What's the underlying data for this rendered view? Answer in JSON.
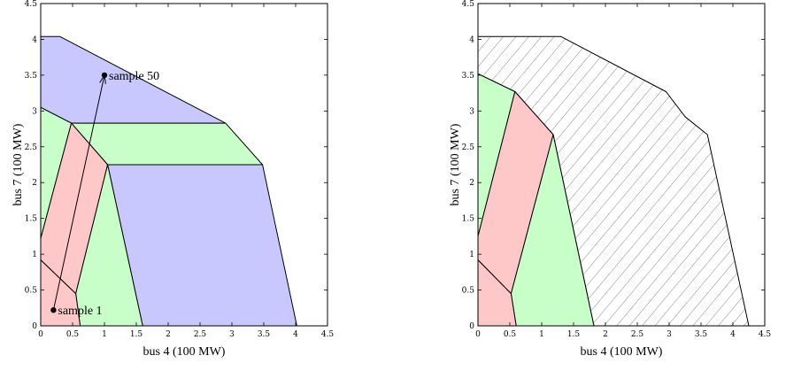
{
  "chart_data": [
    {
      "type": "area",
      "xlabel": "bus 4 (100 MW)",
      "ylabel": "bus 7 (100 MW)",
      "xlim": [
        0,
        4.5
      ],
      "ylim": [
        0,
        4.5
      ],
      "xticks": [
        "0",
        "0.5",
        "1",
        "1.5",
        "2",
        "2.5",
        "3",
        "3.5",
        "4",
        "4.5"
      ],
      "yticks": [
        "0",
        "0.5",
        "1",
        "1.5",
        "2",
        "2.5",
        "3",
        "3.5",
        "4",
        "4.5"
      ],
      "grid": false,
      "colors": {
        "blue": "#c8c8ff",
        "green": "#c8ffc8",
        "red": "#ffc8c8"
      },
      "regions": [
        {
          "color": "blue",
          "points": [
            [
              0,
              4.04
            ],
            [
              0.3,
              4.04
            ],
            [
              2.9,
              2.83
            ],
            [
              0.48,
              2.83
            ],
            [
              0,
              3.05
            ]
          ]
        },
        {
          "color": "green",
          "points": [
            [
              0.48,
              2.83
            ],
            [
              2.9,
              2.83
            ],
            [
              3.48,
              2.25
            ],
            [
              1.05,
              2.25
            ]
          ]
        },
        {
          "color": "blue",
          "points": [
            [
              1.05,
              2.25
            ],
            [
              3.48,
              2.25
            ],
            [
              4.02,
              0
            ],
            [
              1.6,
              0
            ]
          ]
        },
        {
          "color": "green",
          "points": [
            [
              0,
              3.05
            ],
            [
              0.48,
              2.83
            ],
            [
              0,
              1.22
            ]
          ]
        },
        {
          "color": "red",
          "points": [
            [
              0.48,
              2.83
            ],
            [
              1.05,
              2.25
            ],
            [
              0.55,
              0.45
            ],
            [
              0,
              0.92
            ],
            [
              0,
              1.22
            ]
          ]
        },
        {
          "color": "green",
          "points": [
            [
              1.05,
              2.25
            ],
            [
              1.6,
              0
            ],
            [
              0.62,
              0
            ],
            [
              0.55,
              0.45
            ]
          ]
        },
        {
          "color": "red",
          "points": [
            [
              0,
              0.92
            ],
            [
              0.55,
              0.45
            ],
            [
              0.62,
              0
            ],
            [
              0,
              0
            ]
          ]
        }
      ],
      "trajectory": {
        "from": [
          0.2,
          0.22
        ],
        "to": [
          1.0,
          3.5
        ]
      },
      "annotations": [
        {
          "label": "sample 1",
          "x": 0.2,
          "y": 0.22
        },
        {
          "label": "sample 50",
          "x": 1.0,
          "y": 3.5
        }
      ]
    },
    {
      "type": "area",
      "xlabel": "bus 4 (100 MW)",
      "ylabel": "bus 7 (100 MW)",
      "xlim": [
        0,
        4.5
      ],
      "ylim": [
        0,
        4.5
      ],
      "xticks": [
        "0",
        "0.5",
        "1",
        "1.5",
        "2",
        "2.5",
        "3",
        "3.5",
        "4",
        "4.5"
      ],
      "yticks": [
        "0",
        "0.5",
        "1",
        "1.5",
        "2",
        "2.5",
        "3",
        "3.5",
        "4",
        "4.5"
      ],
      "grid": false,
      "colors": {
        "green": "#c8ffc8",
        "red": "#ffc8c8"
      },
      "hatched_region": [
        [
          0,
          4.04
        ],
        [
          1.3,
          4.04
        ],
        [
          2.95,
          3.27
        ],
        [
          3.25,
          2.92
        ],
        [
          3.6,
          2.67
        ],
        [
          4.25,
          0
        ],
        [
          1.82,
          0
        ],
        [
          1.18,
          2.67
        ],
        [
          0.58,
          3.27
        ],
        [
          0,
          3.52
        ]
      ],
      "regions": [
        {
          "color": "green",
          "points": [
            [
              0,
              3.52
            ],
            [
              0.58,
              3.27
            ],
            [
              0,
              1.25
            ]
          ]
        },
        {
          "color": "red",
          "points": [
            [
              0.58,
              3.27
            ],
            [
              1.18,
              2.67
            ],
            [
              0.52,
              0.45
            ],
            [
              0,
              0.92
            ],
            [
              0,
              1.25
            ]
          ]
        },
        {
          "color": "green",
          "points": [
            [
              1.18,
              2.67
            ],
            [
              1.82,
              0
            ],
            [
              0.6,
              0
            ],
            [
              0.52,
              0.45
            ]
          ]
        },
        {
          "color": "red",
          "points": [
            [
              0,
              0.92
            ],
            [
              0.52,
              0.45
            ],
            [
              0.6,
              0
            ],
            [
              0,
              0
            ]
          ]
        }
      ]
    }
  ]
}
